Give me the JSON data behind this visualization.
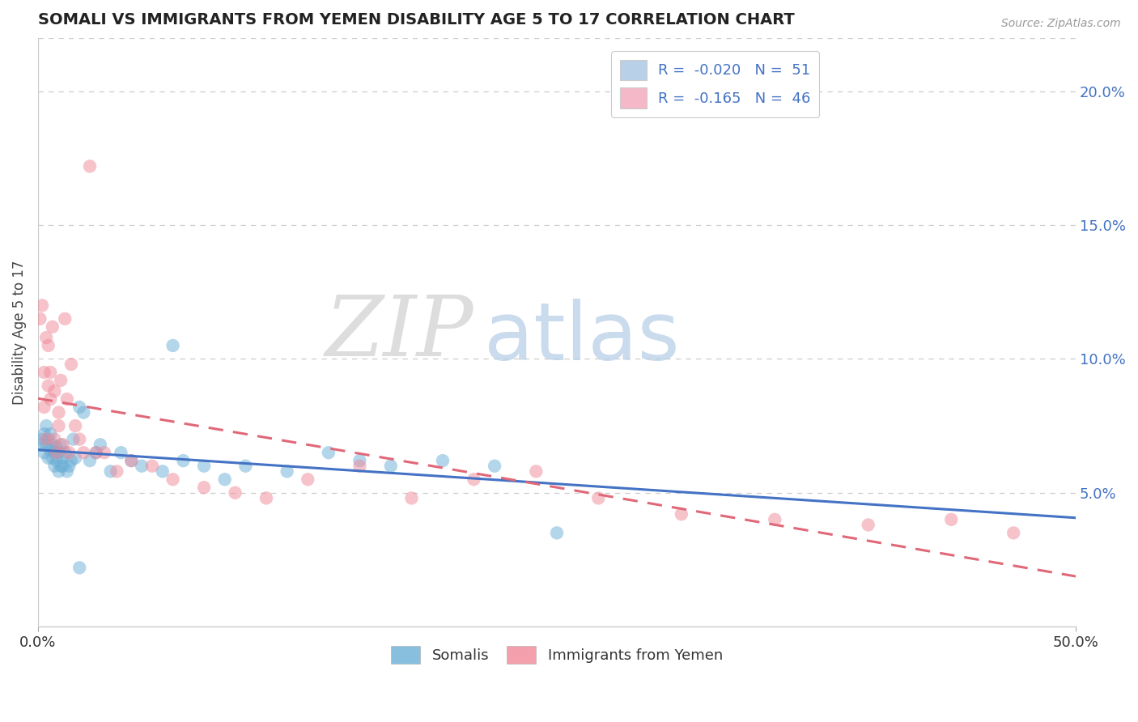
{
  "title": "SOMALI VS IMMIGRANTS FROM YEMEN DISABILITY AGE 5 TO 17 CORRELATION CHART",
  "source": "Source: ZipAtlas.com",
  "ylabel": "Disability Age 5 to 17",
  "xlim": [
    0.0,
    0.5
  ],
  "ylim": [
    0.0,
    0.22
  ],
  "xticks": [
    0.0,
    0.5
  ],
  "xticklabels": [
    "0.0%",
    "50.0%"
  ],
  "yticks_right": [
    0.05,
    0.1,
    0.15,
    0.2
  ],
  "yticklabels_right": [
    "5.0%",
    "10.0%",
    "15.0%",
    "20.0%"
  ],
  "legend_items": [
    {
      "label": "R =  -0.020   N =  51",
      "color": "#b8d0e8"
    },
    {
      "label": "R =  -0.165   N =  46",
      "color": "#f4b8c8"
    }
  ],
  "somali_color": "#6baed6",
  "yemen_color": "#f08898",
  "somali_alpha": 0.5,
  "yemen_alpha": 0.5,
  "trend_somali_color": "#4472c4",
  "trend_yemen_color": "#e06878",
  "background_color": "#ffffff",
  "grid_color": "#cccccc",
  "right_tick_color": "#4472c4",
  "somali_x": [
    0.001,
    0.002,
    0.003,
    0.003,
    0.004,
    0.004,
    0.005,
    0.005,
    0.006,
    0.006,
    0.007,
    0.007,
    0.008,
    0.008,
    0.009,
    0.009,
    0.01,
    0.01,
    0.011,
    0.011,
    0.012,
    0.012,
    0.013,
    0.014,
    0.015,
    0.016,
    0.017,
    0.018,
    0.02,
    0.022,
    0.025,
    0.028,
    0.03,
    0.035,
    0.04,
    0.045,
    0.05,
    0.06,
    0.065,
    0.07,
    0.08,
    0.09,
    0.1,
    0.12,
    0.14,
    0.155,
    0.17,
    0.195,
    0.22,
    0.25,
    0.02
  ],
  "somali_y": [
    0.068,
    0.07,
    0.065,
    0.072,
    0.068,
    0.075,
    0.063,
    0.07,
    0.066,
    0.072,
    0.063,
    0.068,
    0.06,
    0.065,
    0.062,
    0.067,
    0.058,
    0.065,
    0.06,
    0.068,
    0.063,
    0.06,
    0.065,
    0.058,
    0.06,
    0.062,
    0.07,
    0.063,
    0.082,
    0.08,
    0.062,
    0.065,
    0.068,
    0.058,
    0.065,
    0.062,
    0.06,
    0.058,
    0.105,
    0.062,
    0.06,
    0.055,
    0.06,
    0.058,
    0.065,
    0.062,
    0.06,
    0.062,
    0.06,
    0.035,
    0.022
  ],
  "yemen_x": [
    0.001,
    0.002,
    0.003,
    0.003,
    0.004,
    0.004,
    0.005,
    0.005,
    0.006,
    0.006,
    0.007,
    0.008,
    0.008,
    0.009,
    0.01,
    0.01,
    0.011,
    0.012,
    0.013,
    0.014,
    0.015,
    0.016,
    0.018,
    0.02,
    0.022,
    0.025,
    0.028,
    0.032,
    0.038,
    0.045,
    0.055,
    0.065,
    0.08,
    0.095,
    0.11,
    0.13,
    0.155,
    0.18,
    0.21,
    0.24,
    0.27,
    0.31,
    0.355,
    0.4,
    0.44,
    0.47
  ],
  "yemen_y": [
    0.115,
    0.12,
    0.082,
    0.095,
    0.108,
    0.07,
    0.09,
    0.105,
    0.085,
    0.095,
    0.112,
    0.07,
    0.088,
    0.065,
    0.075,
    0.08,
    0.092,
    0.068,
    0.115,
    0.085,
    0.065,
    0.098,
    0.075,
    0.07,
    0.065,
    0.172,
    0.065,
    0.065,
    0.058,
    0.062,
    0.06,
    0.055,
    0.052,
    0.05,
    0.048,
    0.055,
    0.06,
    0.048,
    0.055,
    0.058,
    0.048,
    0.042,
    0.04,
    0.038,
    0.04,
    0.035
  ]
}
